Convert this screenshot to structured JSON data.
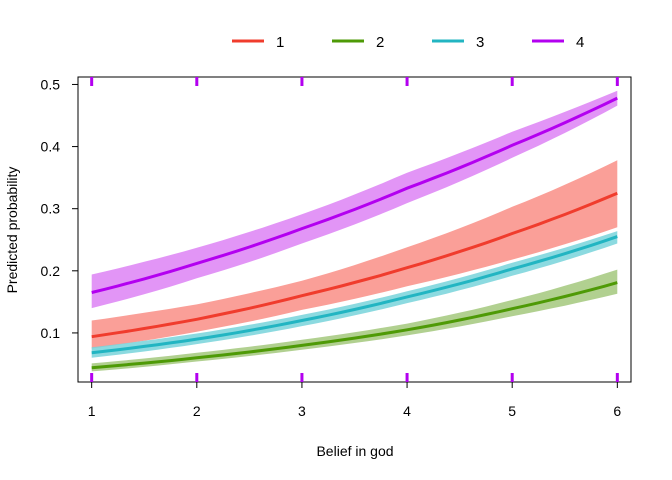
{
  "chart_data": {
    "type": "line",
    "title": "",
    "xlabel": "Belief in god",
    "ylabel": "Predicted probability",
    "xlim": [
      0.87,
      6.13
    ],
    "ylim": [
      0.021,
      0.512
    ],
    "x_ticks": [
      1,
      2,
      3,
      4,
      5,
      6
    ],
    "y_ticks": [
      0.1,
      0.2,
      0.3,
      0.4,
      0.5
    ],
    "x": [
      1,
      2,
      3,
      4,
      5,
      6
    ],
    "legend_position": "top",
    "grid": false,
    "series": [
      {
        "name": "1",
        "color": "#f03c2d",
        "band_color": "#f98e86",
        "values": [
          0.094,
          0.122,
          0.16,
          0.205,
          0.26,
          0.325
        ],
        "lower": [
          0.075,
          0.102,
          0.137,
          0.175,
          0.218,
          0.27
        ],
        "upper": [
          0.12,
          0.146,
          0.184,
          0.238,
          0.303,
          0.378
        ]
      },
      {
        "name": "2",
        "color": "#4e9a06",
        "band_color": "#a3c87c",
        "values": [
          0.044,
          0.06,
          0.08,
          0.105,
          0.139,
          0.181
        ],
        "lower": [
          0.038,
          0.054,
          0.073,
          0.096,
          0.127,
          0.163
        ],
        "upper": [
          0.051,
          0.068,
          0.089,
          0.115,
          0.153,
          0.202
        ]
      },
      {
        "name": "3",
        "color": "#22b5c2",
        "band_color": "#78d3da",
        "values": [
          0.068,
          0.09,
          0.12,
          0.158,
          0.203,
          0.255
        ],
        "lower": [
          0.06,
          0.082,
          0.111,
          0.148,
          0.192,
          0.244
        ],
        "upper": [
          0.077,
          0.099,
          0.129,
          0.167,
          0.213,
          0.264
        ]
      },
      {
        "name": "4",
        "color": "#b300f0",
        "band_color": "#dd82f4",
        "values": [
          0.165,
          0.212,
          0.268,
          0.333,
          0.402,
          0.478
        ],
        "lower": [
          0.14,
          0.188,
          0.244,
          0.309,
          0.382,
          0.466
        ],
        "upper": [
          0.194,
          0.237,
          0.291,
          0.358,
          0.424,
          0.49
        ]
      }
    ]
  }
}
